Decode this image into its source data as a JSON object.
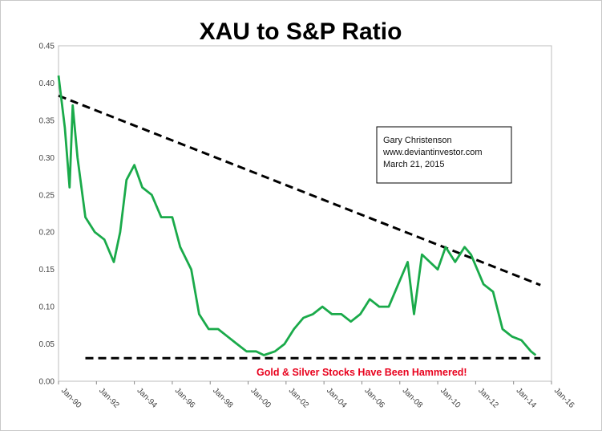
{
  "chart_data": {
    "type": "line",
    "title": "XAU to S&P Ratio",
    "xlabel": "",
    "ylabel": "",
    "x_range": [
      "1990-01",
      "2016-01"
    ],
    "ylim": [
      0,
      0.45
    ],
    "y_ticks": [
      "0.00",
      "0.05",
      "0.10",
      "0.15",
      "0.20",
      "0.25",
      "0.30",
      "0.35",
      "0.40",
      "0.45"
    ],
    "x_ticks": [
      "Jan-90",
      "Jan-92",
      "Jan-94",
      "Jan-96",
      "Jan-98",
      "Jan-00",
      "Jan-02",
      "Jan-04",
      "Jan-06",
      "Jan-08",
      "Jan-10",
      "Jan-12",
      "Jan-14",
      "Jan-16"
    ],
    "grid": false,
    "series": [
      {
        "color": "#1aaa4a",
        "points": [
          [
            "1990-01",
            0.41
          ],
          [
            "1990-05",
            0.34
          ],
          [
            "1990-08",
            0.26
          ],
          [
            "1990-10",
            0.37
          ],
          [
            "1991-01",
            0.3
          ],
          [
            "1991-06",
            0.22
          ],
          [
            "1991-12",
            0.2
          ],
          [
            "1992-06",
            0.19
          ],
          [
            "1992-12",
            0.16
          ],
          [
            "1993-04",
            0.2
          ],
          [
            "1993-08",
            0.27
          ],
          [
            "1994-01",
            0.29
          ],
          [
            "1994-06",
            0.26
          ],
          [
            "1994-12",
            0.25
          ],
          [
            "1995-06",
            0.22
          ],
          [
            "1996-01",
            0.22
          ],
          [
            "1996-06",
            0.18
          ],
          [
            "1997-01",
            0.15
          ],
          [
            "1997-06",
            0.09
          ],
          [
            "1997-12",
            0.07
          ],
          [
            "1998-06",
            0.07
          ],
          [
            "1998-12",
            0.06
          ],
          [
            "1999-06",
            0.05
          ],
          [
            "1999-12",
            0.04
          ],
          [
            "2000-06",
            0.04
          ],
          [
            "2000-11",
            0.035
          ],
          [
            "2001-06",
            0.04
          ],
          [
            "2001-12",
            0.05
          ],
          [
            "2002-06",
            0.07
          ],
          [
            "2002-12",
            0.085
          ],
          [
            "2003-06",
            0.09
          ],
          [
            "2003-12",
            0.1
          ],
          [
            "2004-06",
            0.09
          ],
          [
            "2004-12",
            0.09
          ],
          [
            "2005-06",
            0.08
          ],
          [
            "2005-12",
            0.09
          ],
          [
            "2006-06",
            0.11
          ],
          [
            "2006-12",
            0.1
          ],
          [
            "2007-06",
            0.1
          ],
          [
            "2007-12",
            0.13
          ],
          [
            "2008-06",
            0.16
          ],
          [
            "2008-10",
            0.09
          ],
          [
            "2009-03",
            0.17
          ],
          [
            "2009-08",
            0.16
          ],
          [
            "2010-01",
            0.15
          ],
          [
            "2010-06",
            0.18
          ],
          [
            "2010-12",
            0.16
          ],
          [
            "2011-06",
            0.18
          ],
          [
            "2011-10",
            0.17
          ],
          [
            "2012-06",
            0.13
          ],
          [
            "2012-12",
            0.12
          ],
          [
            "2013-06",
            0.07
          ],
          [
            "2013-12",
            0.06
          ],
          [
            "2014-06",
            0.055
          ],
          [
            "2014-12",
            0.04
          ],
          [
            "2015-03",
            0.035
          ]
        ]
      }
    ],
    "trendlines": [
      {
        "color": "#000000",
        "style": "dashed",
        "points": [
          [
            "1990-01",
            0.383
          ],
          [
            "2015-06",
            0.129
          ]
        ]
      },
      {
        "color": "#000000",
        "style": "dashed",
        "points": [
          [
            "1991-06",
            0.031
          ],
          [
            "2015-06",
            0.031
          ]
        ]
      }
    ],
    "annotations": [
      {
        "lines": [
          "Gary Christenson",
          "www.deviantinvestor.com",
          "March 21, 2015"
        ],
        "boxed": true
      },
      {
        "text": "Gold & Silver Stocks Have Been Hammered!",
        "color": "#e8001c"
      }
    ]
  }
}
